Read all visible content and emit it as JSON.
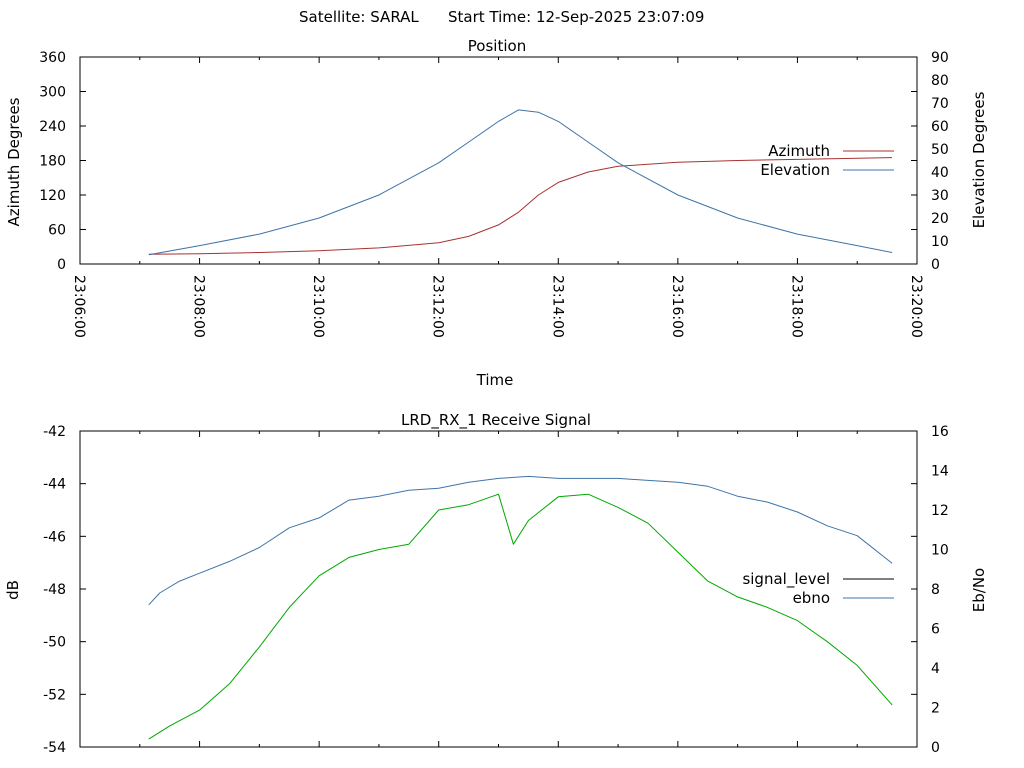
{
  "header": {
    "satellite_label": "Satellite: SARAL",
    "start_time_label": "Start Time: 12-Sep-2025 23:07:09"
  },
  "chart_data": [
    {
      "type": "line",
      "title": "Position",
      "xlabel": "Time",
      "ylabel": "Azimuth Degrees",
      "y2label": "Elevation Degrees",
      "xlim": [
        "23:06:00",
        "23:20:00"
      ],
      "xticks": [
        "23:06:00",
        "23:08:00",
        "23:10:00",
        "23:12:00",
        "23:14:00",
        "23:16:00",
        "23:18:00",
        "23:20:00"
      ],
      "ylim": [
        0,
        360
      ],
      "yticks": [
        0,
        60,
        120,
        180,
        240,
        300,
        360
      ],
      "y2lim": [
        0,
        90
      ],
      "y2ticks": [
        0,
        10,
        20,
        30,
        40,
        50,
        60,
        70,
        80,
        90
      ],
      "legend_position": "right",
      "grid": false,
      "series": [
        {
          "name": "Azimuth",
          "axis": "left",
          "color": "#a83232",
          "x": [
            "23:07:09",
            "23:08:00",
            "23:09:00",
            "23:10:00",
            "23:11:00",
            "23:12:00",
            "23:12:30",
            "23:13:00",
            "23:13:20",
            "23:13:40",
            "23:14:00",
            "23:14:30",
            "23:15:00",
            "23:16:00",
            "23:17:00",
            "23:18:00",
            "23:19:00",
            "23:19:35"
          ],
          "values": [
            17,
            18,
            20,
            23,
            28,
            37,
            48,
            68,
            90,
            120,
            142,
            160,
            170,
            177,
            180,
            182,
            184,
            185
          ]
        },
        {
          "name": "Elevation",
          "axis": "right",
          "color": "#3f74a8",
          "x": [
            "23:07:09",
            "23:08:00",
            "23:09:00",
            "23:10:00",
            "23:11:00",
            "23:12:00",
            "23:12:30",
            "23:13:00",
            "23:13:20",
            "23:13:40",
            "23:14:00",
            "23:14:30",
            "23:15:00",
            "23:16:00",
            "23:17:00",
            "23:18:00",
            "23:19:00",
            "23:19:35"
          ],
          "values": [
            4,
            8,
            13,
            20,
            30,
            44,
            53,
            62,
            67,
            66,
            62,
            53,
            44,
            30,
            20,
            13,
            8,
            5
          ]
        }
      ]
    },
    {
      "type": "line",
      "title": "LRD_RX_1 Receive Signal",
      "ylabel": "dB",
      "y2label": "Eb/No",
      "xlim": [
        "23:06:00",
        "23:20:00"
      ],
      "ylim": [
        -54,
        -42
      ],
      "yticks": [
        -54,
        -52,
        -50,
        -48,
        -46,
        -44,
        -42
      ],
      "y2lim": [
        0,
        16
      ],
      "y2ticks": [
        0,
        2,
        4,
        6,
        8,
        10,
        12,
        14,
        16
      ],
      "legend_position": "right",
      "grid": false,
      "series": [
        {
          "name": "signal_level",
          "axis": "left",
          "color": "#00a800",
          "x": [
            "23:07:09",
            "23:07:30",
            "23:08:00",
            "23:08:30",
            "23:09:00",
            "23:09:30",
            "23:10:00",
            "23:10:30",
            "23:11:00",
            "23:11:30",
            "23:12:00",
            "23:12:30",
            "23:13:00",
            "23:13:15",
            "23:13:30",
            "23:14:00",
            "23:14:30",
            "23:15:00",
            "23:15:30",
            "23:16:00",
            "23:16:30",
            "23:17:00",
            "23:17:30",
            "23:18:00",
            "23:18:30",
            "23:19:00",
            "23:19:35"
          ],
          "values": [
            -53.7,
            -53.2,
            -52.6,
            -51.6,
            -50.2,
            -48.7,
            -47.5,
            -46.8,
            -46.5,
            -46.3,
            -45.0,
            -44.8,
            -44.4,
            -46.3,
            -45.4,
            -44.5,
            -44.4,
            -44.9,
            -45.5,
            -46.6,
            -47.7,
            -48.3,
            -48.7,
            -49.2,
            -50.0,
            -50.9,
            -52.4
          ]
        },
        {
          "name": "ebno",
          "axis": "right",
          "color": "#3f74a8",
          "x": [
            "23:07:09",
            "23:07:20",
            "23:07:40",
            "23:08:00",
            "23:08:30",
            "23:09:00",
            "23:09:30",
            "23:10:00",
            "23:10:30",
            "23:11:00",
            "23:11:30",
            "23:12:00",
            "23:12:30",
            "23:13:00",
            "23:13:30",
            "23:14:00",
            "23:14:30",
            "23:15:00",
            "23:15:30",
            "23:16:00",
            "23:16:30",
            "23:17:00",
            "23:17:30",
            "23:18:00",
            "23:18:30",
            "23:19:00",
            "23:19:35"
          ],
          "values": [
            7.2,
            7.8,
            8.4,
            8.8,
            9.4,
            10.1,
            11.1,
            11.6,
            12.5,
            12.7,
            13.0,
            13.1,
            13.4,
            13.6,
            13.7,
            13.6,
            13.6,
            13.6,
            13.5,
            13.4,
            13.2,
            12.7,
            12.4,
            11.9,
            11.2,
            10.7,
            9.3
          ]
        }
      ]
    }
  ]
}
